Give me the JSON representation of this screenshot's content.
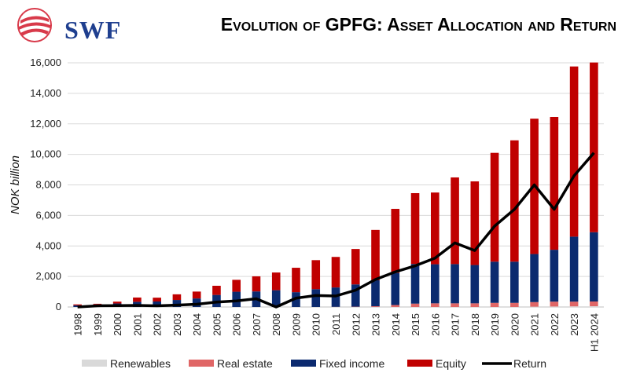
{
  "logo_text": "SWF",
  "chart_data": {
    "type": "bar",
    "title": "Evolution of GPFG: Asset Allocation and Return",
    "ylabel": "NOK billion",
    "xlabel": "",
    "ylim": [
      0,
      16000
    ],
    "yticks": [
      "0",
      "2,000",
      "4,000",
      "6,000",
      "8,000",
      "10,000",
      "12,000",
      "14,000",
      "16,000"
    ],
    "grid": true,
    "legend": "bottom",
    "categories": [
      "1998",
      "1999",
      "2000",
      "2001",
      "2002",
      "2003",
      "2004",
      "2005",
      "2006",
      "2007",
      "2008",
      "2009",
      "2010",
      "2011",
      "2012",
      "2013",
      "2014",
      "2015",
      "2016",
      "2017",
      "2018",
      "2019",
      "2020",
      "2021",
      "2022",
      "2023",
      "H1 2024"
    ],
    "stacked": true,
    "series": [
      {
        "name": "Renewables",
        "color": "#d9d9d9",
        "values": [
          0,
          0,
          0,
          0,
          0,
          0,
          0,
          0,
          0,
          0,
          0,
          0,
          0,
          0,
          0,
          0,
          0,
          0,
          0,
          0,
          0,
          0,
          0,
          20,
          30,
          40,
          50
        ]
      },
      {
        "name": "Real estate",
        "color": "#e06666",
        "values": [
          0,
          0,
          0,
          0,
          0,
          0,
          0,
          0,
          0,
          0,
          0,
          0,
          0,
          10,
          20,
          50,
          130,
          220,
          240,
          240,
          240,
          270,
          270,
          300,
          320,
          310,
          310
        ]
      },
      {
        "name": "Fixed income",
        "color": "#0b2a6f",
        "values": [
          110,
          170,
          230,
          340,
          360,
          460,
          560,
          790,
          1000,
          1020,
          1100,
          970,
          1170,
          1270,
          1460,
          1700,
          2100,
          2600,
          2560,
          2570,
          2510,
          2700,
          2700,
          3150,
          3400,
          4260,
          4540
        ]
      },
      {
        "name": "Equity",
        "color": "#c00000",
        "values": [
          60,
          40,
          120,
          280,
          250,
          370,
          450,
          600,
          780,
          990,
          1160,
          1600,
          1900,
          2000,
          2320,
          3300,
          4200,
          4640,
          4700,
          5680,
          5480,
          7130,
          7950,
          8870,
          8700,
          11150,
          11120
        ]
      }
    ],
    "line_series": {
      "name": "Return",
      "color": "#000000",
      "values": [
        0,
        80,
        90,
        100,
        80,
        120,
        180,
        320,
        400,
        540,
        -30,
        580,
        750,
        720,
        1100,
        1800,
        2300,
        2700,
        3200,
        4200,
        3700,
        5300,
        6400,
        8000,
        6400,
        8600,
        10100
      ]
    }
  }
}
